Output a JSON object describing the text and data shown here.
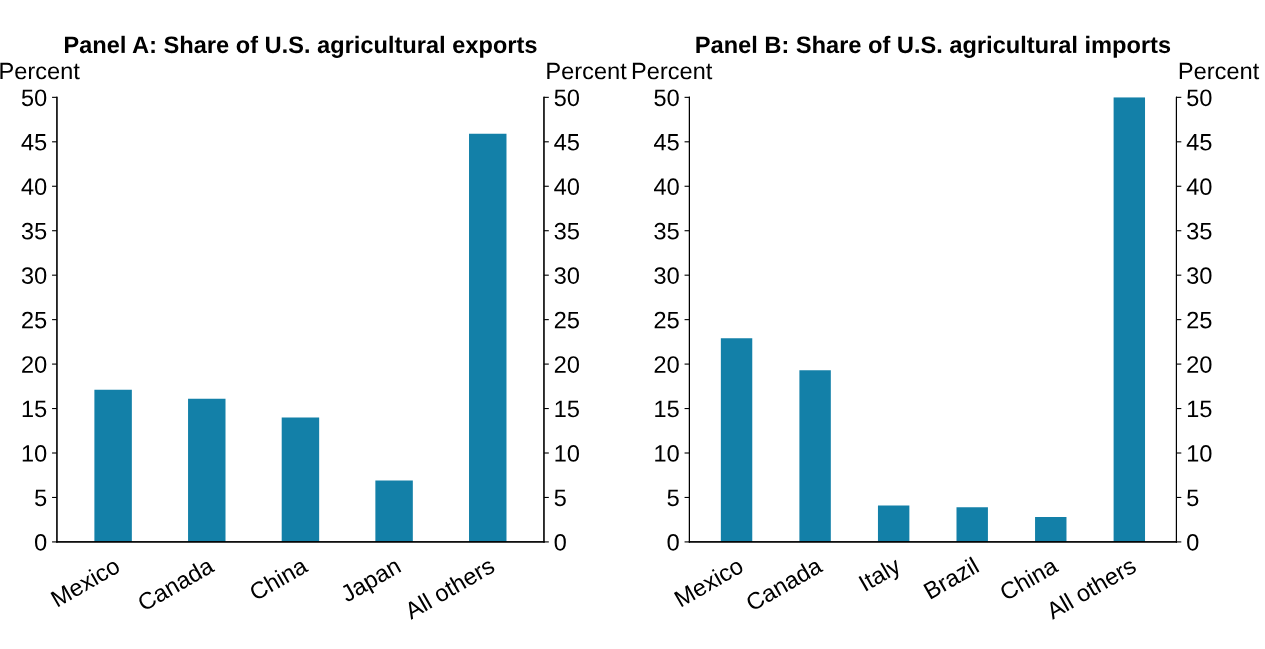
{
  "chart_data": [
    {
      "type": "bar",
      "title": "Panel A: Share of U.S. agricultural exports",
      "ylabel": "Percent",
      "y2label": "Percent",
      "categories": [
        "Mexico",
        "Canada",
        "China",
        "Japan",
        "All others"
      ],
      "values": [
        17.1,
        16.1,
        14.0,
        6.9,
        45.9
      ],
      "color": "#1380a8",
      "ylim": [
        0,
        50
      ],
      "yticks": [
        0,
        5,
        10,
        15,
        20,
        25,
        30,
        35,
        40,
        45,
        50
      ],
      "y2lim": [
        0,
        50
      ],
      "y2ticks": [
        0,
        5,
        10,
        15,
        20,
        25,
        30,
        35,
        40,
        45,
        50
      ],
      "grid": false,
      "legend": false
    },
    {
      "type": "bar",
      "title": "Panel B: Share of U.S. agricultural imports",
      "ylabel": "Percent",
      "y2label": "Percent",
      "categories": [
        "Mexico",
        "Canada",
        "Italy",
        "Brazil",
        "China",
        "All others"
      ],
      "values": [
        22.9,
        19.3,
        4.1,
        3.9,
        2.8,
        50.0
      ],
      "color": "#1380a8",
      "ylim": [
        0,
        50
      ],
      "yticks": [
        0,
        5,
        10,
        15,
        20,
        25,
        30,
        35,
        40,
        45,
        50
      ],
      "y2lim": [
        0,
        50
      ],
      "y2ticks": [
        0,
        5,
        10,
        15,
        20,
        25,
        30,
        35,
        40,
        45,
        50
      ],
      "grid": false,
      "legend": false
    }
  ]
}
